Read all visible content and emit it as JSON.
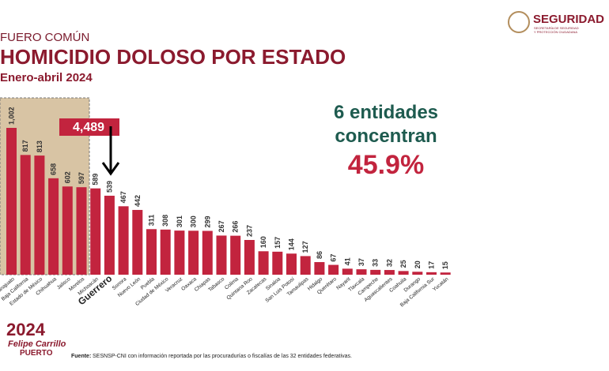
{
  "chart_data": {
    "type": "bar",
    "supertitle": "FUERO COMÚN",
    "title": "HOMICIDIO DOLOSO POR ESTADO",
    "subtitle": "Enero-abril 2024",
    "categories": [
      "Guanajuato",
      "Baja California",
      "Estado de México",
      "Chihuahua",
      "Jalisco",
      "Morelos",
      "Michoacán",
      "Guerrero",
      "Sonora",
      "Nuevo León",
      "Puebla",
      "Ciudad de México",
      "Veracruz",
      "Oaxaca",
      "Chiapas",
      "Tabasco",
      "Colima",
      "Quintana Roo",
      "Zacatecas",
      "Sinaloa",
      "San Luis Potosí",
      "Tamaulipas",
      "Hidalgo",
      "Querétaro",
      "Nayarit",
      "Tlaxcala",
      "Campeche",
      "Aguascalientes",
      "Coahuila",
      "Durango",
      "Baja California Sur",
      "Yucatán"
    ],
    "values": [
      1002,
      817,
      813,
      658,
      602,
      597,
      589,
      539,
      467,
      442,
      311,
      308,
      301,
      300,
      299,
      267,
      266,
      237,
      160,
      157,
      144,
      127,
      86,
      67,
      41,
      37,
      33,
      32,
      25,
      20,
      17,
      15
    ],
    "value_labels": [
      "1,002",
      "817",
      "813",
      "658",
      "602",
      "597",
      "589",
      "539",
      "467",
      "442",
      "311",
      "308",
      "301",
      "300",
      "299",
      "267",
      "266",
      "237",
      "160",
      "157",
      "144",
      "127",
      "86",
      "67",
      "41",
      "37",
      "33",
      "32",
      "25",
      "20",
      "17",
      "15"
    ],
    "color": "#c2243e",
    "group_total": "4,489",
    "note_lines": [
      "6 entidades",
      "concentran"
    ],
    "note_value": "45.9%",
    "source_label": "Fuente:",
    "source": "SESNSP-CNI con información reportada por las procuradurías o fiscalías de las 32 entidades federativas."
  },
  "logo": {
    "name": "SEGURIDAD",
    "line1": "SECRETARÍA DE SEGURIDAD",
    "line2": "Y PROTECCIÓN CIUDADANA"
  },
  "footer_logo": {
    "year": "2024",
    "name": "Felipe Carrillo",
    "place": "PUERTO"
  }
}
